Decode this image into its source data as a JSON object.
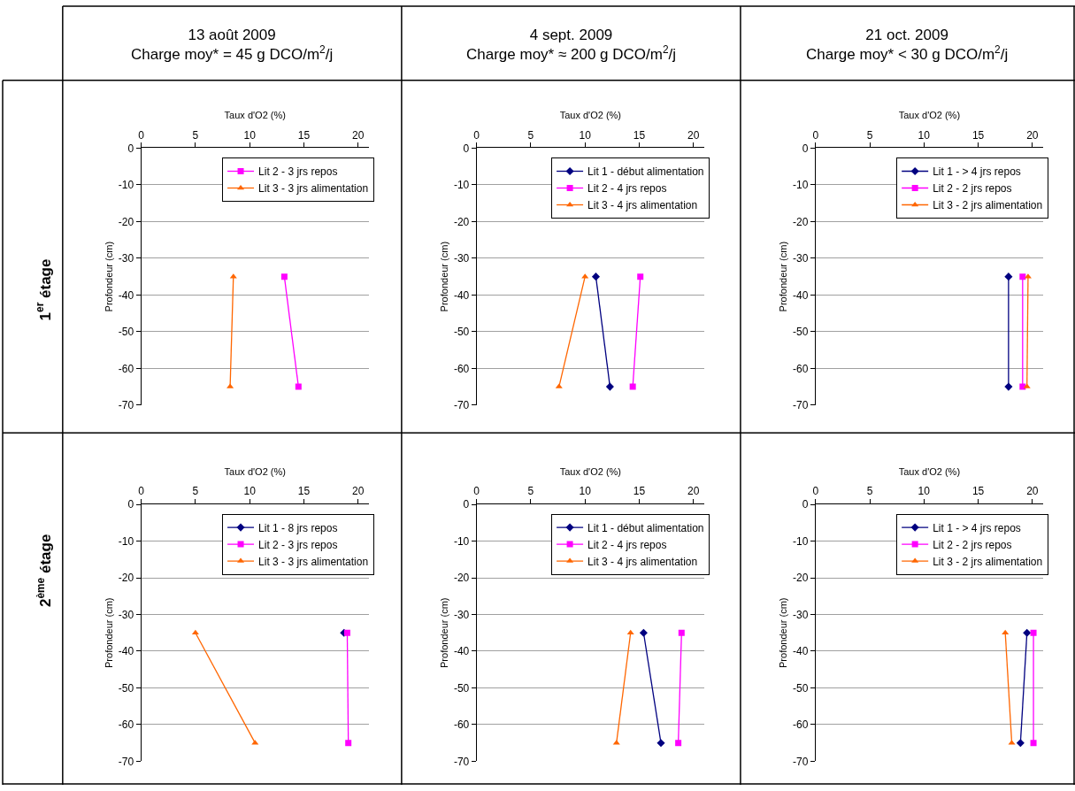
{
  "chart_data": [
    {
      "type": "line",
      "title": "13 août 2009",
      "subtitle": "Charge moy* = 45 g DCO/m$^{2}$/j",
      "xlabel": "Taux d'O2 (%)",
      "ylabel": "Profondeur (cm)",
      "annotations": [
        "1$^{er}$ étage"
      ],
      "xlim": [
        0,
        21
      ],
      "xticks": [
        0,
        5,
        10,
        15,
        20
      ],
      "ylim": [
        -70,
        0
      ],
      "yticks": [
        0,
        -10,
        -20,
        -30,
        -40,
        -50,
        -60,
        -70
      ],
      "grid": "y",
      "legend": "top right",
      "series": [
        {
          "name": "Lit 2 - 3 jrs repos",
          "color": "#ff00ff",
          "marker": "square",
          "x": [
            13.2,
            14.5
          ],
          "values": [
            -35,
            -65
          ]
        },
        {
          "name": "Lit 3 - 3 jrs alimentation",
          "color": "#ff6600",
          "marker": "triangle",
          "x": [
            8.5,
            8.2
          ],
          "values": [
            -35,
            -65
          ]
        }
      ]
    },
    {
      "type": "line",
      "title": "4 sept. 2009",
      "subtitle": "Charge moy* ≈ 200 g DCO/m$^{2}$/j",
      "xlabel": "Taux d'O2 (%)",
      "ylabel": "Profondeur (cm)",
      "xlim": [
        0,
        21
      ],
      "xticks": [
        0,
        5,
        10,
        15,
        20
      ],
      "ylim": [
        -70,
        0
      ],
      "yticks": [
        0,
        -10,
        -20,
        -30,
        -40,
        -50,
        -60,
        -70
      ],
      "grid": "y",
      "legend": "top right",
      "series": [
        {
          "name": "Lit 1 - début alimentation",
          "color": "#000080",
          "marker": "diamond",
          "x": [
            11.0,
            12.3
          ],
          "values": [
            -35,
            -65
          ]
        },
        {
          "name": "Lit 2 - 4 jrs repos",
          "color": "#ff00ff",
          "marker": "square",
          "x": [
            15.1,
            14.4
          ],
          "values": [
            -35,
            -65
          ]
        },
        {
          "name": "Lit 3 - 4 jrs alimentation",
          "color": "#ff6600",
          "marker": "triangle",
          "x": [
            10.0,
            7.6
          ],
          "values": [
            -35,
            -65
          ]
        }
      ]
    },
    {
      "type": "line",
      "title": "21 oct. 2009",
      "subtitle": "Charge moy* < 30 g DCO/m$^{2}$/j",
      "xlabel": "Taux d'O2 (%)",
      "ylabel": "Profondeur (cm)",
      "xlim": [
        0,
        21
      ],
      "xticks": [
        0,
        5,
        10,
        15,
        20
      ],
      "ylim": [
        -70,
        0
      ],
      "yticks": [
        0,
        -10,
        -20,
        -30,
        -40,
        -50,
        -60,
        -70
      ],
      "grid": "y",
      "legend": "top right",
      "series": [
        {
          "name": "Lit 1 - > 4 jrs repos",
          "color": "#000080",
          "marker": "diamond",
          "x": [
            17.8,
            17.8
          ],
          "values": [
            -35,
            -65
          ]
        },
        {
          "name": "Lit 2 - 2 jrs repos",
          "color": "#ff00ff",
          "marker": "square",
          "x": [
            19.1,
            19.1
          ],
          "values": [
            -35,
            -65
          ]
        },
        {
          "name": "Lit 3 - 2 jrs alimentation",
          "color": "#ff6600",
          "marker": "triangle",
          "x": [
            19.6,
            19.5
          ],
          "values": [
            -35,
            -65
          ]
        }
      ]
    },
    {
      "type": "line",
      "xlabel": "Taux d'O2 (%)",
      "ylabel": "Profondeur (cm)",
      "annotations": [
        "2$^{ème}$ étage"
      ],
      "xlim": [
        0,
        21
      ],
      "xticks": [
        0,
        5,
        10,
        15,
        20
      ],
      "ylim": [
        -70,
        0
      ],
      "yticks": [
        0,
        -10,
        -20,
        -30,
        -40,
        -50,
        -60,
        -70
      ],
      "grid": "y",
      "legend": "top right",
      "series": [
        {
          "name": "Lit 1 - 8 jrs repos",
          "color": "#000080",
          "marker": "diamond",
          "x": [
            18.7
          ],
          "values": [
            -35
          ]
        },
        {
          "name": "Lit 2 - 3 jrs repos",
          "color": "#ff00ff",
          "marker": "square",
          "x": [
            19.0,
            19.1
          ],
          "values": [
            -35,
            -65
          ]
        },
        {
          "name": "Lit 3 - 3 jrs alimentation",
          "color": "#ff6600",
          "marker": "triangle",
          "x": [
            5.0,
            10.5
          ],
          "values": [
            -35,
            -65
          ]
        }
      ]
    },
    {
      "type": "line",
      "xlabel": "Taux d'O2 (%)",
      "ylabel": "Profondeur (cm)",
      "xlim": [
        0,
        21
      ],
      "xticks": [
        0,
        5,
        10,
        15,
        20
      ],
      "ylim": [
        -70,
        0
      ],
      "yticks": [
        0,
        -10,
        -20,
        -30,
        -40,
        -50,
        -60,
        -70
      ],
      "grid": "y",
      "legend": "top right",
      "series": [
        {
          "name": "Lit 1 - début alimentation",
          "color": "#000080",
          "marker": "diamond",
          "x": [
            15.4,
            17.0
          ],
          "values": [
            -35,
            -65
          ]
        },
        {
          "name": "Lit 2 - 4 jrs repos",
          "color": "#ff00ff",
          "marker": "square",
          "x": [
            18.9,
            18.6
          ],
          "values": [
            -35,
            -65
          ]
        },
        {
          "name": "Lit 3 - 4 jrs alimentation",
          "color": "#ff6600",
          "marker": "triangle",
          "x": [
            14.2,
            12.9
          ],
          "values": [
            -35,
            -65
          ]
        }
      ]
    },
    {
      "type": "line",
      "xlabel": "Taux d'O2 (%)",
      "ylabel": "Profondeur (cm)",
      "xlim": [
        0,
        21
      ],
      "xticks": [
        0,
        5,
        10,
        15,
        20
      ],
      "ylim": [
        -70,
        0
      ],
      "yticks": [
        0,
        -10,
        -20,
        -30,
        -40,
        -50,
        -60,
        -70
      ],
      "grid": "y",
      "legend": "top right",
      "series": [
        {
          "name": "Lit 1 - > 4 jrs repos",
          "color": "#000080",
          "marker": "diamond",
          "x": [
            19.5,
            18.9
          ],
          "values": [
            -35,
            -65
          ]
        },
        {
          "name": "Lit 2 - 2 jrs repos",
          "color": "#ff00ff",
          "marker": "square",
          "x": [
            20.1,
            20.1
          ],
          "values": [
            -35,
            -65
          ]
        },
        {
          "name": "Lit 3 - 2 jrs alimentation",
          "color": "#ff6600",
          "marker": "triangle",
          "x": [
            17.5,
            18.1
          ],
          "values": [
            -35,
            -65
          ]
        }
      ]
    }
  ]
}
